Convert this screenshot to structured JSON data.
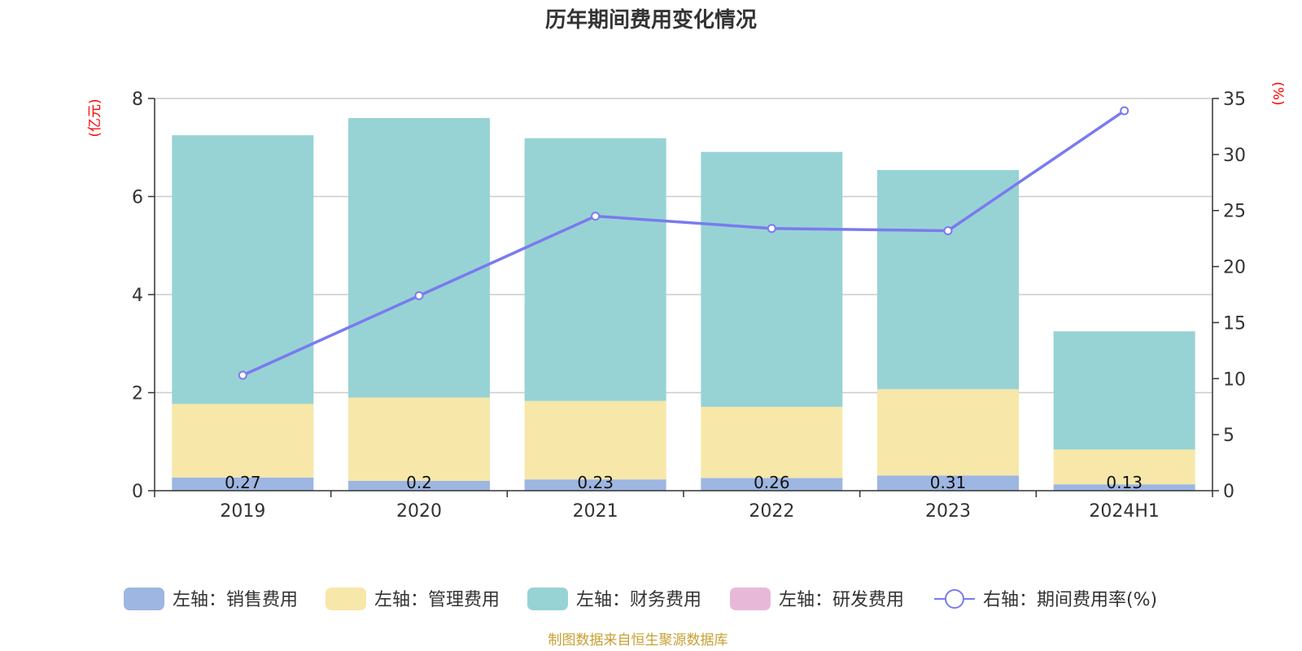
{
  "chart_data": {
    "type": "bar",
    "title": "历年期间费用变化情况",
    "categories": [
      "2019",
      "2020",
      "2021",
      "2022",
      "2023",
      "2024H1"
    ],
    "left_axis": {
      "unit": "(亿元)",
      "ylim": [
        0,
        8
      ],
      "ticks": [
        "0",
        "2",
        "4",
        "6",
        "8"
      ]
    },
    "right_axis": {
      "unit": "(%)",
      "ylim": [
        0,
        35
      ],
      "ticks": [
        "0",
        "5",
        "10",
        "15",
        "20",
        "25",
        "30",
        "35"
      ]
    },
    "stacked_series": [
      {
        "name": "左轴：销售费用",
        "color": "#9db6e2",
        "values": [
          0.27,
          0.2,
          0.23,
          0.26,
          0.31,
          0.13
        ],
        "labels": [
          "0.27",
          "0.2",
          "0.23",
          "0.26",
          "0.31",
          "0.13"
        ]
      },
      {
        "name": "左轴：管理费用",
        "color": "#f7e7a9",
        "values": [
          1.5,
          1.7,
          1.6,
          1.45,
          1.76,
          0.71
        ]
      },
      {
        "name": "左轴：财务费用",
        "color": "#97d3d4",
        "values": [
          5.48,
          5.7,
          5.36,
          5.2,
          4.47,
          2.41
        ]
      },
      {
        "name": "左轴：研发费用",
        "color": "#e8b8d9",
        "values": [
          0,
          0,
          0,
          0,
          0,
          0
        ]
      }
    ],
    "line_series": {
      "name": "右轴：期间费用率(%)",
      "color": "#7a7aef",
      "values": [
        10.3,
        17.4,
        24.5,
        23.4,
        23.2,
        33.9
      ]
    },
    "legend_position": "bottom",
    "grid": true
  },
  "source_note": "制图数据来自恒生聚源数据库"
}
